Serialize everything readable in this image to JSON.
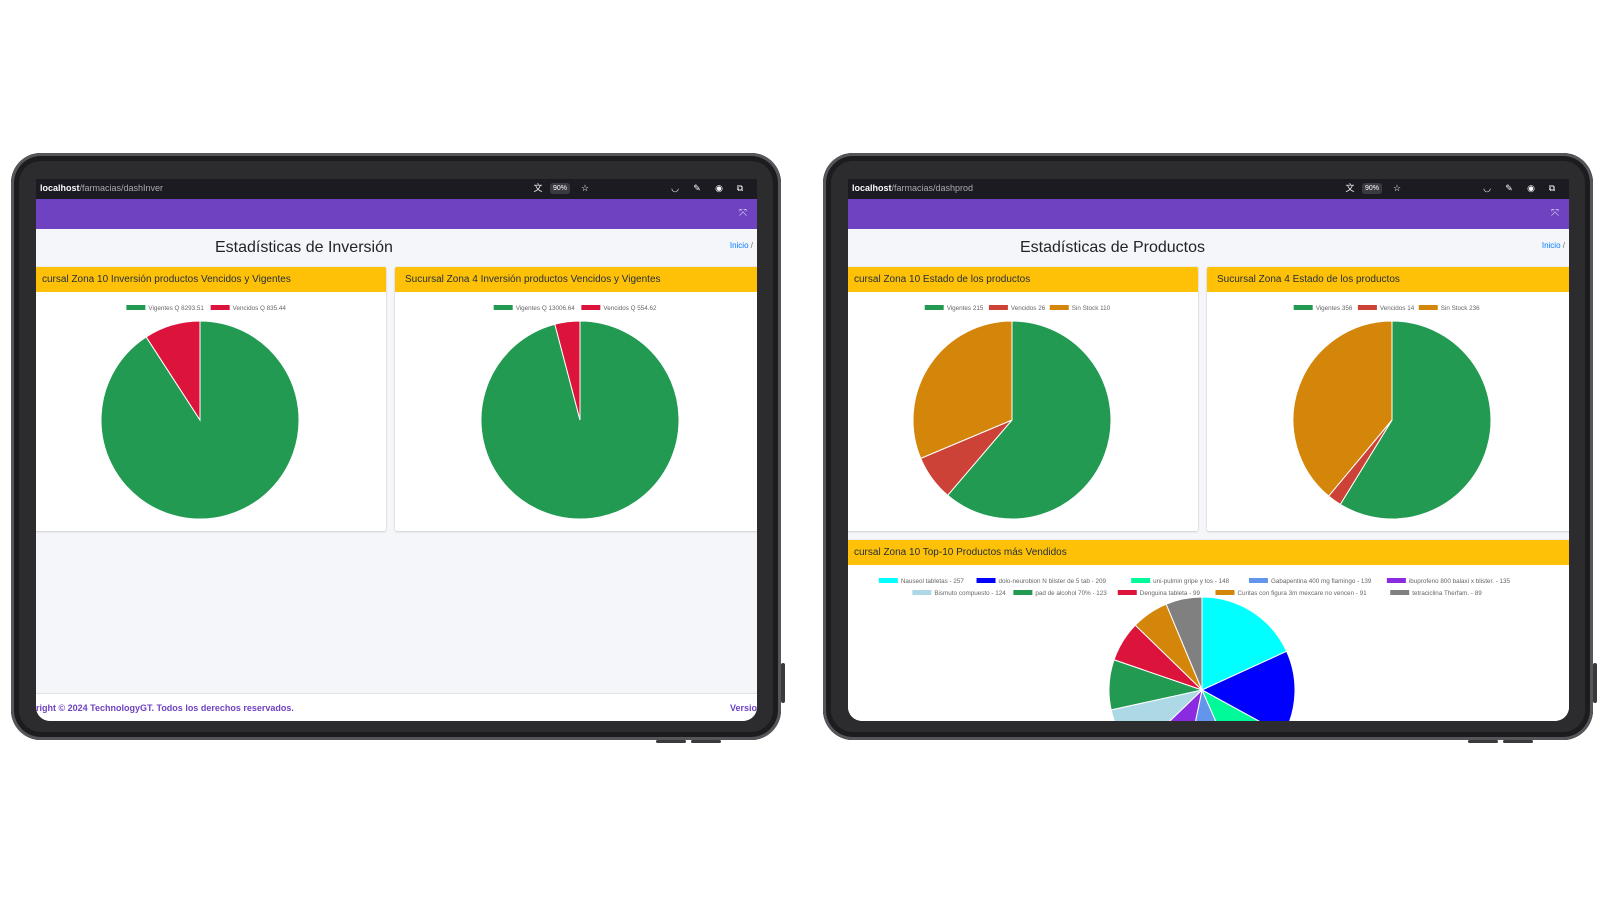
{
  "left": {
    "browser": {
      "host": "localhost",
      "path": "/farmacias/dashInver",
      "zoom": "90%"
    },
    "page_title": "Estadísticas de Inversión",
    "breadcrumb": {
      "home": "Inicio",
      "separator": "/"
    },
    "footer": {
      "copyright": "right © 2024 TechnologyGT. Todos los derechos reservados.",
      "version": "Versio"
    },
    "cards": [
      {
        "title": "cursal Zona 10 Inversión productos Vencidos y Vigentes"
      },
      {
        "title": "Sucursal Zona 4 Inversión productos Vencidos y Vigentes"
      }
    ]
  },
  "right": {
    "browser": {
      "host": "localhost",
      "path": "/farmacias/dashprod",
      "zoom": "90%"
    },
    "page_title": "Estadísticas de Productos",
    "breadcrumb": {
      "home": "Inicio",
      "separator": "/"
    },
    "cards": [
      {
        "title": "cursal Zona 10 Estado de los productos"
      },
      {
        "title": "Sucursal Zona 4 Estado de los productos"
      },
      {
        "title": "cursal Zona 10 Top-10 Productos más Vendidos"
      }
    ]
  },
  "chart_data": [
    {
      "type": "pie",
      "labels": [
        "Vigentes Q 8293.51",
        "Vencidos Q 835.44"
      ],
      "values": [
        8293.51,
        835.44
      ],
      "colors": [
        "#239a52",
        "#dc143c"
      ]
    },
    {
      "type": "pie",
      "labels": [
        "Vigentes Q 13006.64",
        "Vencidos Q 554.62"
      ],
      "values": [
        13006.64,
        554.62
      ],
      "colors": [
        "#239a52",
        "#dc143c"
      ]
    },
    {
      "type": "pie",
      "labels": [
        "Vigentes 215",
        "Vencidos 26",
        "Sin Stock 110"
      ],
      "values": [
        215,
        26,
        110
      ],
      "colors": [
        "#239a52",
        "#cc4236",
        "#d4860b"
      ]
    },
    {
      "type": "pie",
      "labels": [
        "Vigentes 356",
        "Vencidos 14",
        "Sin Stock 236"
      ],
      "values": [
        356,
        14,
        236
      ],
      "colors": [
        "#239a52",
        "#cc4236",
        "#d4860b"
      ]
    },
    {
      "type": "pie",
      "labels": [
        "Nauseol tabletas - 257",
        "dolo-neurobion N blister de 5 tab - 209",
        "uni-pulmin gripe y tos - 148",
        "Gabapentina 400 mg  flamingo - 139",
        "ibuprofeno 800 balaxi x blister. - 135",
        "Bismuto compuesto - 124",
        "pad de alcohol 70% - 123",
        "Denguina tableta  - 99",
        "Curitas con figura 3m mexcare  no vencen - 91",
        "tetraciclina  Therfam. - 89"
      ],
      "values": [
        257,
        209,
        148,
        139,
        135,
        124,
        123,
        99,
        91,
        89
      ],
      "colors": [
        "#00ffff",
        "#0000ff",
        "#00fa9a",
        "#6495ed",
        "#8a2be2",
        "#add8e6",
        "#239a52",
        "#dc143c",
        "#d4860b",
        "#808080"
      ]
    }
  ]
}
